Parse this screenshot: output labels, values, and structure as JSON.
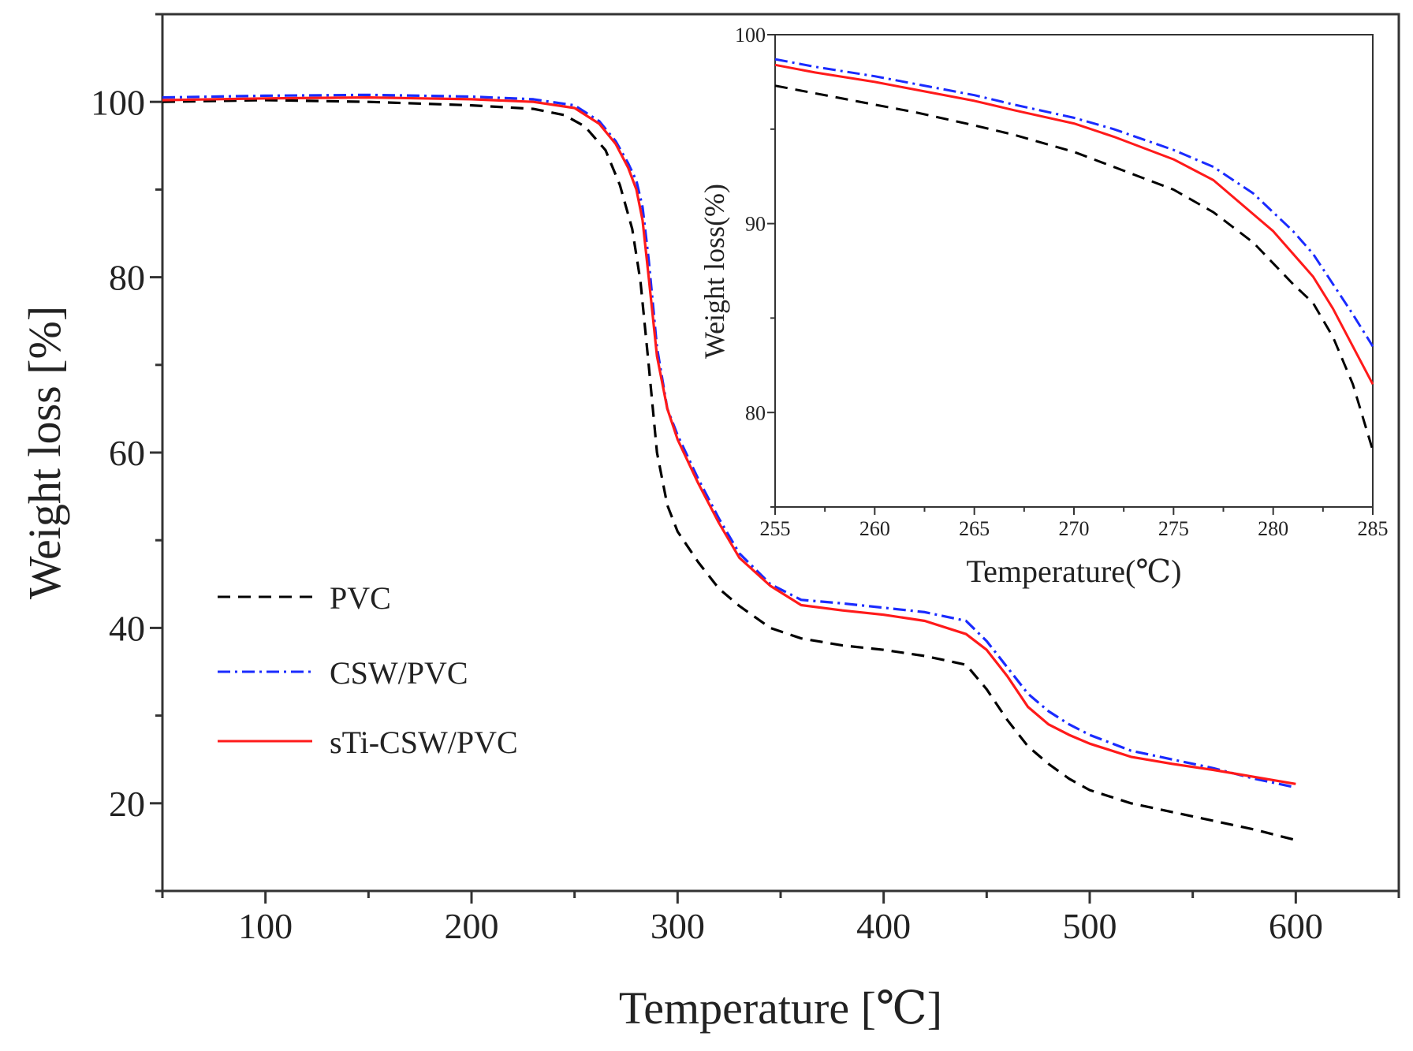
{
  "chart_data": [
    {
      "type": "line",
      "xlabel": "Temperature [℃]",
      "ylabel": "Weight loss [%]",
      "xlim": [
        50,
        650
      ],
      "ylim": [
        10,
        110
      ],
      "xticks": [
        100,
        200,
        300,
        400,
        500,
        600
      ],
      "yticks": [
        20,
        40,
        60,
        80,
        100
      ],
      "grid": false,
      "legend": "center-left",
      "series": [
        {
          "name": "PVC",
          "color": "#000000",
          "dash": "dashed",
          "points": [
            [
              50,
              100.0
            ],
            [
              100,
              100.2
            ],
            [
              150,
              100.0
            ],
            [
              200,
              99.6
            ],
            [
              230,
              99.2
            ],
            [
              245,
              98.5
            ],
            [
              255,
              97.2
            ],
            [
              265,
              94.5
            ],
            [
              272,
              90.5
            ],
            [
              278,
              85.5
            ],
            [
              282,
              79.5
            ],
            [
              286,
              70
            ],
            [
              290,
              60
            ],
            [
              295,
              54
            ],
            [
              300,
              51
            ],
            [
              310,
              47.5
            ],
            [
              320,
              44.5
            ],
            [
              330,
              42.5
            ],
            [
              345,
              40
            ],
            [
              360,
              38.8
            ],
            [
              380,
              38
            ],
            [
              400,
              37.5
            ],
            [
              420,
              36.8
            ],
            [
              440,
              35.8
            ],
            [
              450,
              33
            ],
            [
              460,
              29.5
            ],
            [
              470,
              26.5
            ],
            [
              480,
              24.5
            ],
            [
              490,
              22.8
            ],
            [
              500,
              21.5
            ],
            [
              520,
              20
            ],
            [
              540,
              19
            ],
            [
              560,
              18
            ],
            [
              580,
              17
            ],
            [
              600,
              15.8
            ]
          ]
        },
        {
          "name": "CSW/PVC",
          "color": "#1a2bff",
          "dash": "dashdot",
          "points": [
            [
              50,
              100.5
            ],
            [
              100,
              100.7
            ],
            [
              150,
              100.8
            ],
            [
              200,
              100.6
            ],
            [
              230,
              100.3
            ],
            [
              250,
              99.6
            ],
            [
              262,
              97.8
            ],
            [
              270,
              95.5
            ],
            [
              276,
              93
            ],
            [
              280,
              91
            ],
            [
              283,
              88
            ],
            [
              286,
              82
            ],
            [
              290,
              72
            ],
            [
              295,
              65
            ],
            [
              300,
              62
            ],
            [
              310,
              57
            ],
            [
              320,
              52.5
            ],
            [
              330,
              48.5
            ],
            [
              345,
              45
            ],
            [
              360,
              43.2
            ],
            [
              380,
              42.8
            ],
            [
              400,
              42.3
            ],
            [
              420,
              41.8
            ],
            [
              440,
              40.8
            ],
            [
              450,
              38.5
            ],
            [
              460,
              35.5
            ],
            [
              470,
              32.5
            ],
            [
              480,
              30.5
            ],
            [
              490,
              29
            ],
            [
              500,
              27.8
            ],
            [
              520,
              26
            ],
            [
              540,
              25
            ],
            [
              560,
              24
            ],
            [
              580,
              22.8
            ],
            [
              600,
              21.8
            ]
          ]
        },
        {
          "name": "sTi-CSW/PVC",
          "color": "#ff1a1a",
          "dash": "solid",
          "points": [
            [
              50,
              100.2
            ],
            [
              100,
              100.4
            ],
            [
              150,
              100.5
            ],
            [
              200,
              100.3
            ],
            [
              230,
              100.0
            ],
            [
              250,
              99.3
            ],
            [
              262,
              97.5
            ],
            [
              270,
              95.2
            ],
            [
              276,
              92.5
            ],
            [
              280,
              90
            ],
            [
              283,
              86.5
            ],
            [
              286,
              80
            ],
            [
              290,
              71
            ],
            [
              295,
              65
            ],
            [
              300,
              61.5
            ],
            [
              310,
              56.5
            ],
            [
              320,
              52
            ],
            [
              330,
              48
            ],
            [
              345,
              44.8
            ],
            [
              360,
              42.6
            ],
            [
              380,
              42
            ],
            [
              400,
              41.5
            ],
            [
              420,
              40.8
            ],
            [
              440,
              39.3
            ],
            [
              450,
              37.5
            ],
            [
              460,
              34.5
            ],
            [
              470,
              31
            ],
            [
              480,
              29
            ],
            [
              490,
              27.8
            ],
            [
              500,
              26.8
            ],
            [
              520,
              25.3
            ],
            [
              540,
              24.5
            ],
            [
              560,
              23.8
            ],
            [
              580,
              23
            ],
            [
              600,
              22.2
            ]
          ]
        }
      ]
    },
    {
      "type": "line",
      "xlabel": "Temperature(℃)",
      "ylabel": "Weight loss(%)",
      "xlim": [
        255,
        285
      ],
      "ylim": [
        75,
        100
      ],
      "xticks": [
        255,
        260,
        265,
        270,
        275,
        280,
        285
      ],
      "yticks": [
        80,
        90,
        100
      ],
      "grid": false,
      "series": [
        {
          "name": "PVC",
          "color": "#000000",
          "dash": "dashed",
          "points": [
            [
              255,
              97.3
            ],
            [
              257,
              96.9
            ],
            [
              260,
              96.3
            ],
            [
              262,
              95.9
            ],
            [
              265,
              95.2
            ],
            [
              267,
              94.7
            ],
            [
              270,
              93.8
            ],
            [
              272,
              93.0
            ],
            [
              275,
              91.8
            ],
            [
              277,
              90.6
            ],
            [
              279,
              89.0
            ],
            [
              281,
              86.8
            ],
            [
              282,
              85.8
            ],
            [
              283,
              84.0
            ],
            [
              284,
              81.5
            ],
            [
              285,
              78.0
            ]
          ]
        },
        {
          "name": "CSW/PVC",
          "color": "#1a2bff",
          "dash": "dashdot",
          "points": [
            [
              255,
              98.7
            ],
            [
              257,
              98.3
            ],
            [
              260,
              97.8
            ],
            [
              262,
              97.4
            ],
            [
              265,
              96.8
            ],
            [
              267,
              96.3
            ],
            [
              270,
              95.6
            ],
            [
              272,
              95.0
            ],
            [
              275,
              93.9
            ],
            [
              277,
              93.0
            ],
            [
              279,
              91.6
            ],
            [
              281,
              89.6
            ],
            [
              282,
              88.4
            ],
            [
              283,
              86.8
            ],
            [
              284,
              85.2
            ],
            [
              285,
              83.5
            ]
          ]
        },
        {
          "name": "sTi-CSW/PVC",
          "color": "#ff1a1a",
          "dash": "solid",
          "points": [
            [
              255,
              98.4
            ],
            [
              257,
              98.0
            ],
            [
              260,
              97.5
            ],
            [
              262,
              97.1
            ],
            [
              265,
              96.5
            ],
            [
              267,
              96.0
            ],
            [
              270,
              95.3
            ],
            [
              272,
              94.6
            ],
            [
              275,
              93.4
            ],
            [
              277,
              92.3
            ],
            [
              279,
              90.5
            ],
            [
              280,
              89.6
            ],
            [
              282,
              87.2
            ],
            [
              283,
              85.5
            ],
            [
              284,
              83.5
            ],
            [
              285,
              81.5
            ]
          ]
        }
      ]
    }
  ]
}
